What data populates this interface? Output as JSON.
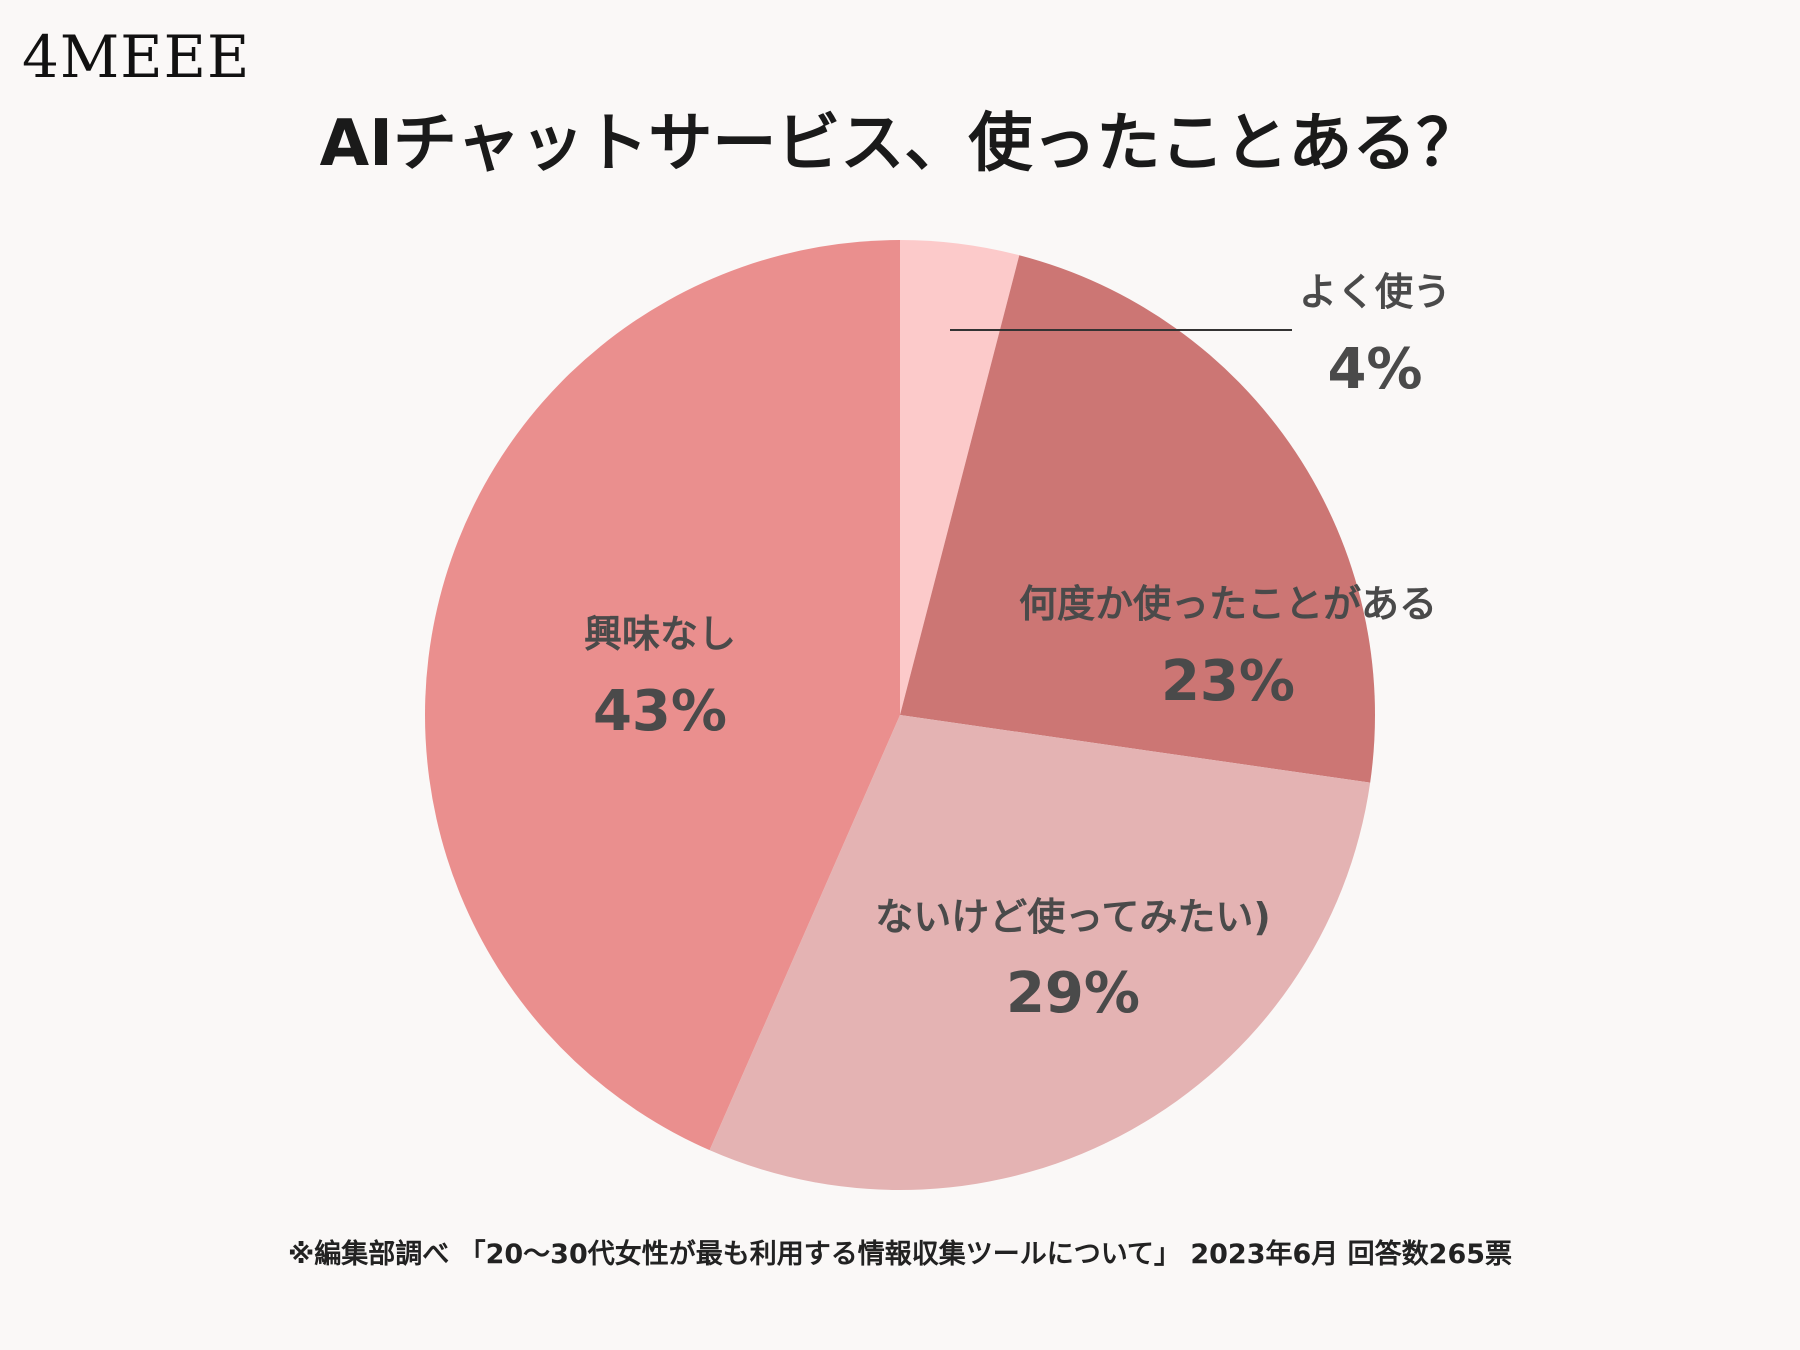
{
  "brand": {
    "logo_text": "4MEEE"
  },
  "chart_data": {
    "type": "pie",
    "title": "AIチャットサービス、使ったことある？",
    "start_angle_deg": 0,
    "direction": "clockwise",
    "categories": [
      "よく使う",
      "何度か使ったことがある",
      "ないけど使ってみたい)",
      "興味なし"
    ],
    "values": [
      4,
      23,
      29,
      43
    ],
    "value_labels": [
      "4%",
      "23%",
      "29%",
      "43%"
    ],
    "colors": [
      "#fccaca",
      "#cc7674",
      "#e4b3b3",
      "#ea8f8e"
    ],
    "legend": "none"
  },
  "footnote": "※編集部調べ 「20〜30代女性が最も利用する情報収集ツールについて」 2023年6月 回答数265票"
}
